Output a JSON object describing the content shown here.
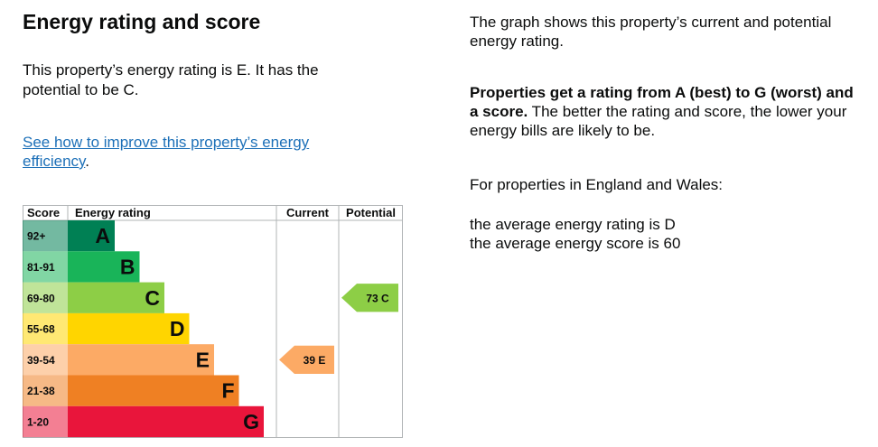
{
  "heading": "Energy rating and score",
  "summary": "This property’s energy rating is E. It has the potential to be C.",
  "improve_link": "See how to improve this property’s energy efficiency",
  "improve_link_suffix": ".",
  "right": {
    "intro": "The graph shows this property’s current and potential energy rating.",
    "bold_lead": "Properties get a rating from A (best) to G (worst) and a score.",
    "rest": " The better the rating and score, the lower your energy bills are likely to be.",
    "region": "For properties in England and Wales:",
    "avg_rating": "the average energy rating is D",
    "avg_score": "the average energy score is 60"
  },
  "chart_data": {
    "type": "table",
    "headers": {
      "score": "Score",
      "rating": "Energy rating",
      "current": "Current",
      "potential": "Potential"
    },
    "bands": [
      {
        "score": "92+",
        "letter": "A",
        "color": "#008054"
      },
      {
        "score": "81-91",
        "letter": "B",
        "color": "#19b459"
      },
      {
        "score": "69-80",
        "letter": "C",
        "color": "#8dce46"
      },
      {
        "score": "55-68",
        "letter": "D",
        "color": "#ffd500"
      },
      {
        "score": "39-54",
        "letter": "E",
        "color": "#fcaa65"
      },
      {
        "score": "21-38",
        "letter": "F",
        "color": "#ef8023"
      },
      {
        "score": "1-20",
        "letter": "G",
        "color": "#e9153b"
      }
    ],
    "current": {
      "score": 39,
      "letter": "E",
      "label": "39 E",
      "color": "#fcaa65"
    },
    "potential": {
      "score": 73,
      "letter": "C",
      "label": "73 C",
      "color": "#8dce46"
    }
  }
}
